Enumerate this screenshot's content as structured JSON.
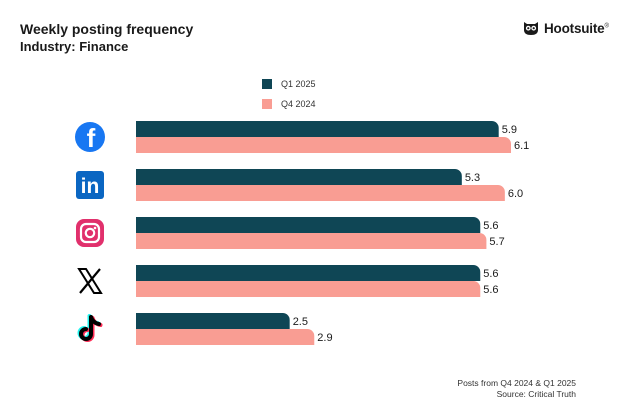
{
  "header": {
    "title": "Weekly posting frequency",
    "subtitle": "Industry: Finance"
  },
  "brand": {
    "name": "Hootsuite",
    "mark": "®"
  },
  "colors": {
    "q1_2025": "#0f4655",
    "q4_2024": "#f99d93"
  },
  "chart_data": {
    "type": "bar",
    "orientation": "horizontal",
    "title": "Weekly posting frequency",
    "subtitle": "Industry: Finance",
    "categories": [
      "Facebook",
      "LinkedIn",
      "Instagram",
      "X",
      "TikTok"
    ],
    "category_icons": [
      "facebook-icon",
      "linkedin-icon",
      "instagram-icon",
      "x-icon",
      "tiktok-icon"
    ],
    "series": [
      {
        "name": "Q1 2025",
        "values": [
          5.9,
          5.3,
          5.6,
          5.6,
          2.5
        ],
        "color": "#0f4655"
      },
      {
        "name": "Q4 2024",
        "values": [
          6.1,
          6.0,
          5.7,
          5.6,
          2.9
        ],
        "color": "#f99d93"
      }
    ],
    "xlim": [
      0,
      6.5
    ],
    "xlabel": "",
    "ylabel": "",
    "grid": false,
    "legend_position": "top"
  },
  "footer": {
    "line1": "Posts from Q4 2024 & Q1 2025",
    "line2": "Source: Critical Truth"
  }
}
